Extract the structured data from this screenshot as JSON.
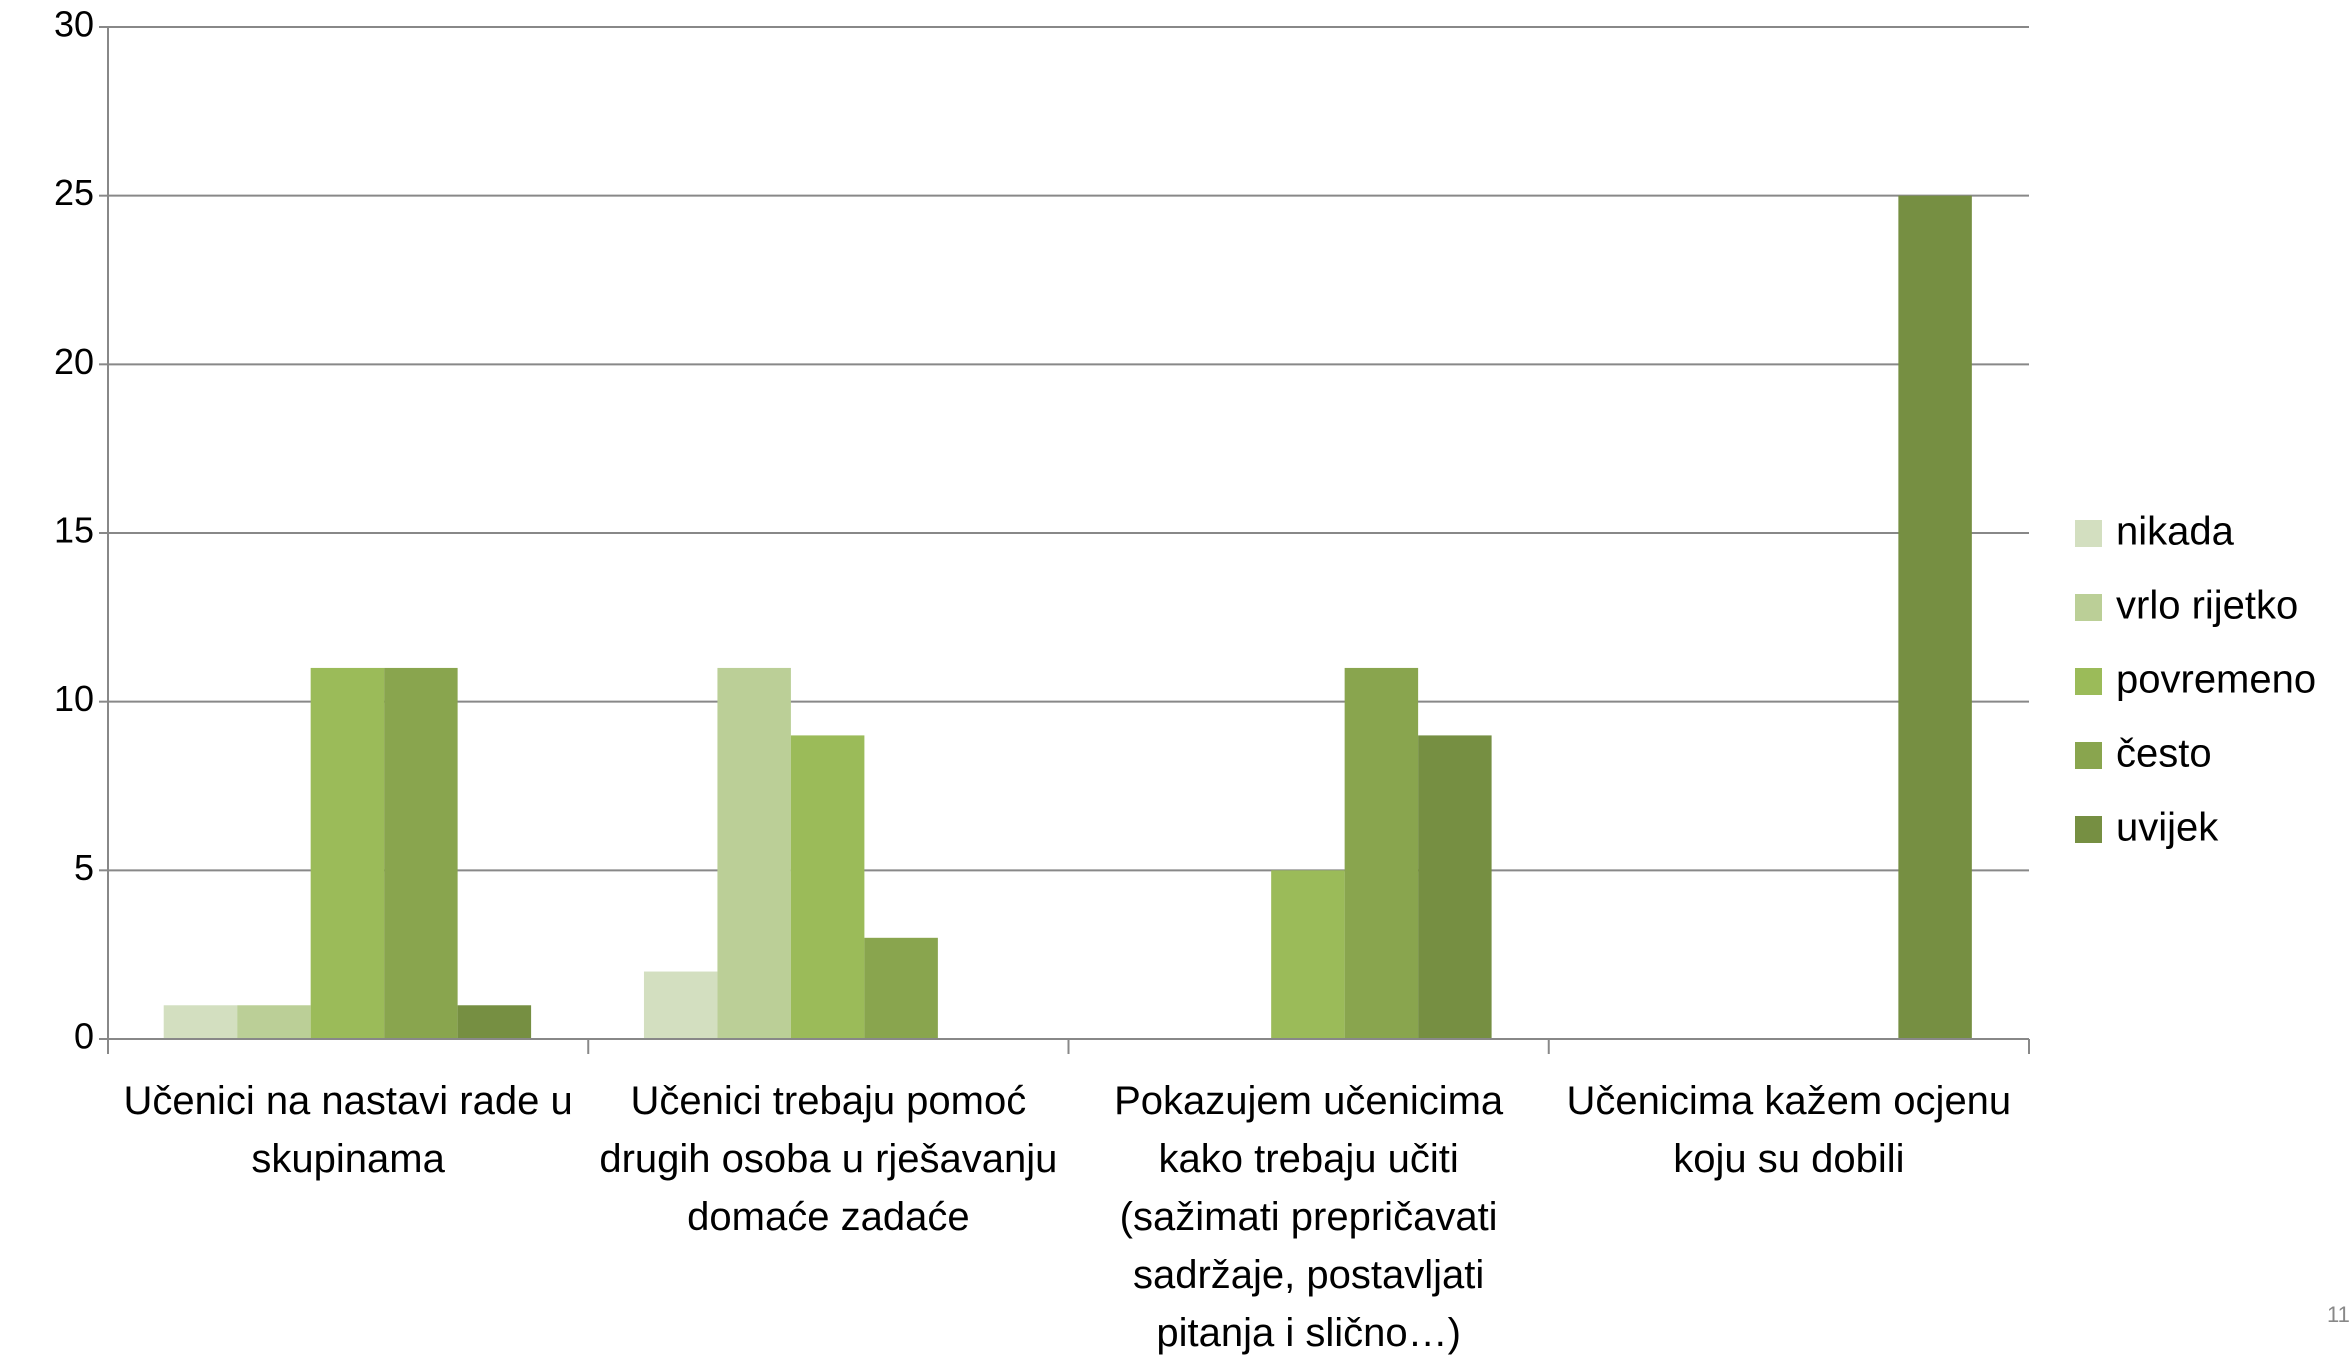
{
  "chart_data": {
    "type": "bar",
    "categories": [
      "Učenici na nastavi rade u skupinama",
      "Učenici trebaju pomoć drugih osoba u rješavanju domaće zadaće",
      "Pokazujem učenicima kako trebaju učiti (sažimati prepričavati sadržaje, postavljati pitanja i slično…)",
      "Učenicima kažem ocjenu koju su dobili"
    ],
    "series": [
      {
        "name": "nikada",
        "color": "#d3dfc0",
        "values": [
          1,
          2,
          0,
          0
        ]
      },
      {
        "name": "vrlo rijetko",
        "color": "#bbcf97",
        "values": [
          1,
          11,
          0,
          0
        ]
      },
      {
        "name": "povremeno",
        "color": "#9bbb59",
        "values": [
          11,
          9,
          5,
          0
        ]
      },
      {
        "name": "često",
        "color": "#89a54e",
        "values": [
          11,
          3,
          11,
          0
        ]
      },
      {
        "name": "uvijek",
        "color": "#768f42",
        "values": [
          1,
          0,
          9,
          25
        ]
      }
    ],
    "ylim": [
      0,
      30
    ],
    "yticks": [
      0,
      5,
      10,
      15,
      20,
      25,
      30
    ],
    "grid": true,
    "legend": "right",
    "page_number": "11"
  }
}
